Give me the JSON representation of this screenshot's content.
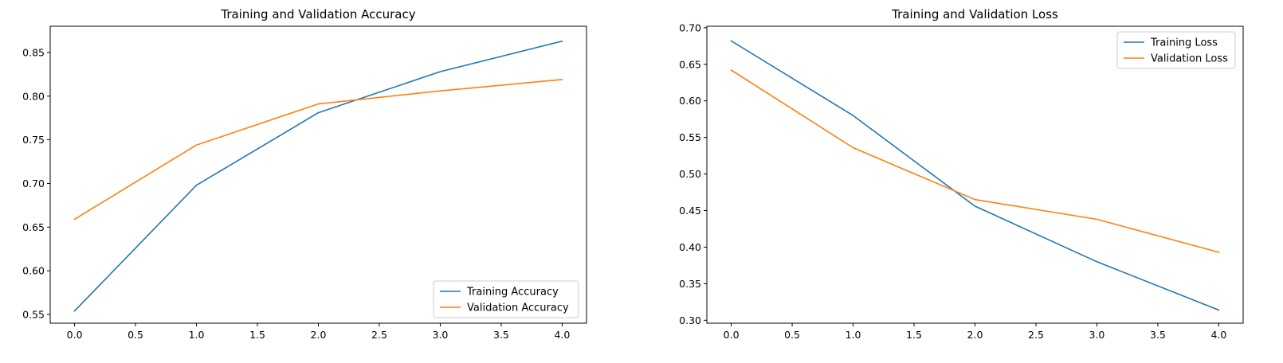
{
  "chart_data": [
    {
      "type": "line",
      "title": "Training and Validation Accuracy",
      "xlabel": "",
      "ylabel": "",
      "xlim": [
        -0.2,
        4.2
      ],
      "ylim": [
        0.54,
        0.88
      ],
      "xticks": [
        0.0,
        0.5,
        1.0,
        1.5,
        2.0,
        2.5,
        3.0,
        3.5,
        4.0
      ],
      "xtick_labels": [
        "0.0",
        "0.5",
        "1.0",
        "1.5",
        "2.0",
        "2.5",
        "3.0",
        "3.5",
        "4.0"
      ],
      "yticks": [
        0.55,
        0.6,
        0.65,
        0.7,
        0.75,
        0.8,
        0.85
      ],
      "ytick_labels": [
        "0.55",
        "0.60",
        "0.65",
        "0.70",
        "0.75",
        "0.80",
        "0.85"
      ],
      "grid": false,
      "legend_position": "lower-right",
      "x": [
        0,
        1,
        2,
        3,
        4
      ],
      "series": [
        {
          "name": "Training Accuracy",
          "color": "#1f77b4",
          "values": [
            0.554,
            0.698,
            0.781,
            0.828,
            0.863
          ]
        },
        {
          "name": "Validation Accuracy",
          "color": "#ff7f0e",
          "values": [
            0.659,
            0.744,
            0.791,
            0.806,
            0.819
          ]
        }
      ]
    },
    {
      "type": "line",
      "title": "Training and Validation Loss",
      "xlabel": "",
      "ylabel": "",
      "xlim": [
        -0.2,
        4.2
      ],
      "ylim": [
        0.296,
        0.702
      ],
      "xticks": [
        0.0,
        0.5,
        1.0,
        1.5,
        2.0,
        2.5,
        3.0,
        3.5,
        4.0
      ],
      "xtick_labels": [
        "0.0",
        "0.5",
        "1.0",
        "1.5",
        "2.0",
        "2.5",
        "3.0",
        "3.5",
        "4.0"
      ],
      "yticks": [
        0.3,
        0.35,
        0.4,
        0.45,
        0.5,
        0.55,
        0.6,
        0.65,
        0.7
      ],
      "ytick_labels": [
        "0.30",
        "0.35",
        "0.40",
        "0.45",
        "0.50",
        "0.55",
        "0.60",
        "0.65",
        "0.70"
      ],
      "grid": false,
      "legend_position": "upper-right",
      "x": [
        0,
        1,
        2,
        3,
        4
      ],
      "series": [
        {
          "name": "Training Loss",
          "color": "#1f77b4",
          "values": [
            0.682,
            0.58,
            0.456,
            0.38,
            0.314
          ]
        },
        {
          "name": "Validation Loss",
          "color": "#ff7f0e",
          "values": [
            0.642,
            0.536,
            0.465,
            0.438,
            0.393
          ]
        }
      ]
    }
  ]
}
